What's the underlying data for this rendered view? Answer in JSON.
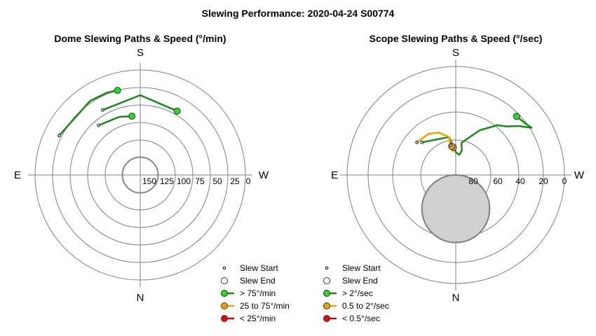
{
  "page_title": "Slewing Performance: 2020-04-24 S00774",
  "colors": {
    "fast": "#1a8a1a",
    "fast_marker": "#22dd22",
    "medium": "#f5a000",
    "medium_marker": "#f5a000",
    "slow": "#cc0000",
    "slow_marker": "#ee0000",
    "grid": "#808080",
    "obstruction_fill": "#d0d0d0",
    "obstruction_stroke": "#808080"
  },
  "chart_data": [
    {
      "type": "scatter",
      "projection": "polar",
      "title": "Dome Slewing Paths & Speed (°/min)",
      "direction_labels": {
        "top": "S",
        "left": "E",
        "right": "W",
        "bottom": "N"
      },
      "radial_ticks": [
        "150",
        "125",
        "100",
        "75",
        "50",
        "25",
        "0"
      ],
      "radial_range": [
        175,
        0
      ],
      "grid": true,
      "legend_position": "bottom-right",
      "legend": [
        {
          "label": "Slew Start",
          "kind": "start"
        },
        {
          "label": "Slew End",
          "kind": "end"
        },
        {
          "label": "> 75°/min",
          "kind": "fast"
        },
        {
          "label": "25 to 75°/min",
          "kind": "medium"
        },
        {
          "label": "< 25°/min",
          "kind": "slow"
        }
      ],
      "series": [
        {
          "speed_class": "fast",
          "points": [
            [
              -64,
              25
            ],
            [
              -34,
              26
            ],
            [
              -22,
              27
            ],
            [
              -15,
              29
            ]
          ]
        },
        {
          "speed_class": "fast",
          "points": [
            [
              -30,
              50
            ],
            [
              0,
              42
            ],
            [
              30,
              52
            ]
          ]
        },
        {
          "speed_class": "fast",
          "points": [
            [
              -40,
              67
            ],
            [
              -20,
              72
            ],
            [
              -8,
              76
            ]
          ]
        }
      ]
    },
    {
      "type": "scatter",
      "projection": "polar",
      "title": "Scope Slewing Paths & Speed (°/sec)",
      "direction_labels": {
        "top": "S",
        "left": "E",
        "right": "W",
        "bottom": "N"
      },
      "radial_ticks": [
        "80",
        "60",
        "40",
        "20",
        "0"
      ],
      "radial_range": [
        90,
        0
      ],
      "grid": true,
      "legend_position": "bottom-left",
      "legend": [
        {
          "label": "Slew Start",
          "kind": "start"
        },
        {
          "label": "Slew End",
          "kind": "end"
        },
        {
          "label": "> 2°/sec",
          "kind": "fast"
        },
        {
          "label": "0.5 to 2°/sec",
          "kind": "medium"
        },
        {
          "label": "< 0.5°/sec",
          "kind": "slow"
        }
      ],
      "obstruction": {
        "center": [
          180,
          62
        ],
        "radius": 17
      },
      "series": [
        {
          "speed_class": "fast",
          "points": [
            [
              -46,
              51
            ],
            [
              -10,
              58
            ],
            [
              0,
              71
            ],
            [
              10,
              73
            ],
            [
              14,
              69
            ],
            [
              10,
              63
            ],
            [
              28,
              48
            ],
            [
              40,
              36
            ],
            [
              46,
              32
            ],
            [
              52,
              24
            ],
            [
              58,
              16
            ],
            [
              54,
              18
            ],
            [
              46,
              20
            ]
          ]
        },
        {
          "speed_class": "medium",
          "points": [
            [
              -50,
              48
            ],
            [
              -34,
              49
            ],
            [
              -22,
              52
            ],
            [
              -10,
              58
            ],
            [
              -10,
              66
            ],
            [
              -7,
              70
            ],
            [
              -5,
              67
            ]
          ]
        },
        {
          "speed_class": "medium",
          "points": [
            [
              -10,
              65
            ],
            [
              -8,
              66
            ]
          ]
        }
      ]
    }
  ]
}
